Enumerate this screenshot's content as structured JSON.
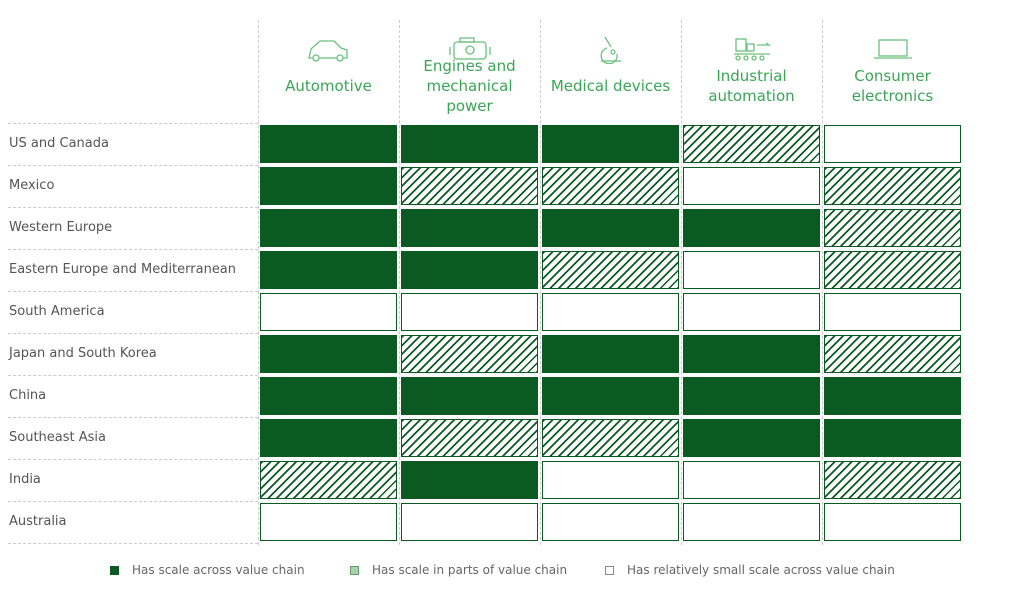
{
  "table": {
    "columns": [
      "Automotive",
      "Engines and mechanical power",
      "Medical devices",
      "Industrial automation",
      "Consumer electronics"
    ],
    "rows": [
      {
        "label": "US and Canada",
        "cells": [
          0,
          0,
          0,
          1,
          2
        ]
      },
      {
        "label": "Mexico",
        "cells": [
          0,
          1,
          1,
          2,
          1
        ]
      },
      {
        "label": "Western Europe",
        "cells": [
          0,
          0,
          0,
          0,
          1
        ]
      },
      {
        "label": "Eastern Europe and Mediterranean",
        "cells": [
          0,
          0,
          1,
          2,
          1
        ]
      },
      {
        "label": "South America",
        "cells": [
          2,
          2,
          2,
          2,
          2
        ]
      },
      {
        "label": "Japan and South Korea",
        "cells": [
          0,
          1,
          0,
          0,
          1
        ]
      },
      {
        "label": "China",
        "cells": [
          0,
          0,
          0,
          0,
          0
        ]
      },
      {
        "label": "Southeast Asia",
        "cells": [
          0,
          1,
          1,
          0,
          0
        ]
      },
      {
        "label": "India",
        "cells": [
          1,
          0,
          2,
          2,
          1
        ]
      },
      {
        "label": "Australia",
        "cells": [
          2,
          2,
          2,
          2,
          2
        ]
      }
    ],
    "legend": [
      "Has scale across value chain",
      "Has scale in parts of value chain",
      "Has relatively small scale across value chain"
    ]
  }
}
